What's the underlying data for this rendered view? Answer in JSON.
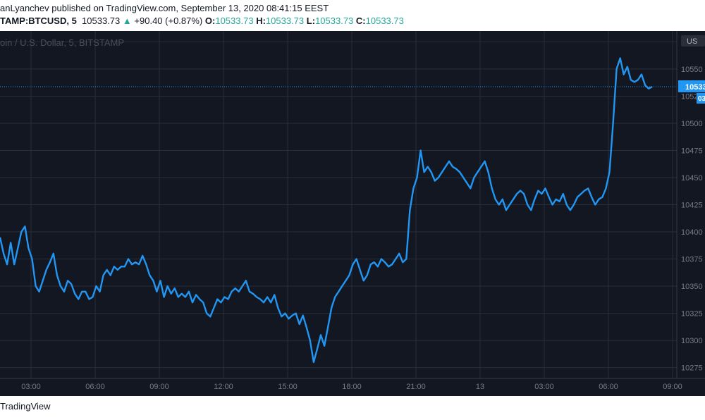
{
  "header": {
    "published_line": "anLyanchev published on TradingView.com, September 13, 2020 08:41:15 EEST",
    "symbol": "TAMP:BTCUSD, 5",
    "last": "10533.73",
    "change_arrow": "▲",
    "change": "+90.40 (+0.87%)",
    "o_label": "O:",
    "o_value": "10533.73",
    "h_label": "H:",
    "h_value": "10533.73",
    "l_label": "L:",
    "l_value": "10533.73",
    "c_label": "C:",
    "c_value": "10533.73"
  },
  "footer": {
    "brand": "TradingView"
  },
  "colors": {
    "background": "#131722",
    "line": "#2196f3",
    "up": "#26a69a",
    "grid": "#363a45",
    "text_light": "#787b86"
  },
  "chart_data": {
    "type": "line",
    "watermark": "oin / U.S. Dollar, 5, BITSTAMP",
    "currency_badge": "US",
    "price_label": "10533",
    "price_label_sub": "03",
    "last_value": 10533.73,
    "x_ticks": [
      "03:00",
      "06:00",
      "09:00",
      "12:00",
      "15:00",
      "18:00",
      "21:00",
      "13",
      "03:00",
      "06:00",
      "09:00"
    ],
    "y_ticks": [
      "10275",
      "10300",
      "10325",
      "10350",
      "10375",
      "10400",
      "10425",
      "10450",
      "10475",
      "10500",
      "10525",
      "10550",
      "10575"
    ],
    "ylim": [
      10265,
      10585
    ],
    "series": [
      {
        "points": [
          [
            "02:00",
            10395
          ],
          [
            "02:10",
            10380
          ],
          [
            "02:20",
            10370
          ],
          [
            "02:30",
            10390
          ],
          [
            "02:40",
            10370
          ],
          [
            "02:50",
            10385
          ],
          [
            "03:00",
            10400
          ],
          [
            "03:10",
            10405
          ],
          [
            "03:20",
            10385
          ],
          [
            "03:30",
            10375
          ],
          [
            "03:40",
            10350
          ],
          [
            "03:50",
            10345
          ],
          [
            "04:00",
            10355
          ],
          [
            "04:10",
            10365
          ],
          [
            "04:20",
            10372
          ],
          [
            "04:30",
            10380
          ],
          [
            "04:40",
            10360
          ],
          [
            "04:50",
            10350
          ],
          [
            "05:00",
            10345
          ],
          [
            "05:10",
            10355
          ],
          [
            "05:20",
            10352
          ],
          [
            "05:30",
            10343
          ],
          [
            "05:40",
            10338
          ],
          [
            "05:50",
            10345
          ],
          [
            "06:00",
            10345
          ],
          [
            "06:10",
            10338
          ],
          [
            "06:20",
            10340
          ],
          [
            "06:30",
            10350
          ],
          [
            "06:40",
            10345
          ],
          [
            "06:50",
            10360
          ],
          [
            "07:00",
            10365
          ],
          [
            "07:10",
            10360
          ],
          [
            "07:20",
            10368
          ],
          [
            "07:30",
            10365
          ],
          [
            "07:40",
            10368
          ],
          [
            "07:50",
            10368
          ],
          [
            "08:00",
            10375
          ],
          [
            "08:10",
            10370
          ],
          [
            "08:20",
            10372
          ],
          [
            "08:30",
            10370
          ],
          [
            "08:40",
            10378
          ],
          [
            "08:50",
            10370
          ],
          [
            "09:00",
            10360
          ],
          [
            "09:10",
            10355
          ],
          [
            "09:20",
            10345
          ],
          [
            "09:30",
            10355
          ],
          [
            "09:40",
            10340
          ],
          [
            "09:50",
            10350
          ],
          [
            "10:00",
            10343
          ],
          [
            "10:10",
            10348
          ],
          [
            "10:20",
            10340
          ],
          [
            "10:30",
            10343
          ],
          [
            "10:40",
            10340
          ],
          [
            "10:50",
            10345
          ],
          [
            "11:00",
            10335
          ],
          [
            "11:10",
            10342
          ],
          [
            "11:20",
            10338
          ],
          [
            "11:30",
            10335
          ],
          [
            "11:40",
            10325
          ],
          [
            "11:50",
            10322
          ],
          [
            "12:00",
            10330
          ],
          [
            "12:10",
            10338
          ],
          [
            "12:20",
            10335
          ],
          [
            "12:30",
            10340
          ],
          [
            "12:40",
            10338
          ],
          [
            "12:50",
            10345
          ],
          [
            "13:00",
            10348
          ],
          [
            "13:10",
            10345
          ],
          [
            "13:20",
            10350
          ],
          [
            "13:30",
            10355
          ],
          [
            "13:40",
            10345
          ],
          [
            "13:50",
            10343
          ],
          [
            "14:00",
            10340
          ],
          [
            "14:10",
            10338
          ],
          [
            "14:20",
            10335
          ],
          [
            "14:30",
            10340
          ],
          [
            "14:40",
            10335
          ],
          [
            "14:50",
            10342
          ],
          [
            "15:00",
            10330
          ],
          [
            "15:10",
            10322
          ],
          [
            "15:20",
            10325
          ],
          [
            "15:30",
            10320
          ],
          [
            "15:40",
            10323
          ],
          [
            "15:50",
            10325
          ],
          [
            "16:00",
            10315
          ],
          [
            "16:10",
            10323
          ],
          [
            "16:20",
            10312
          ],
          [
            "16:30",
            10300
          ],
          [
            "16:40",
            10280
          ],
          [
            "16:50",
            10292
          ],
          [
            "17:00",
            10305
          ],
          [
            "17:10",
            10295
          ],
          [
            "17:20",
            10312
          ],
          [
            "17:30",
            10330
          ],
          [
            "17:40",
            10340
          ],
          [
            "17:50",
            10345
          ],
          [
            "18:00",
            10350
          ],
          [
            "18:10",
            10355
          ],
          [
            "18:20",
            10360
          ],
          [
            "18:30",
            10370
          ],
          [
            "18:40",
            10375
          ],
          [
            "18:50",
            10365
          ],
          [
            "19:00",
            10355
          ],
          [
            "19:10",
            10360
          ],
          [
            "19:20",
            10370
          ],
          [
            "19:30",
            10372
          ],
          [
            "19:40",
            10368
          ],
          [
            "19:50",
            10375
          ],
          [
            "20:00",
            10372
          ],
          [
            "20:10",
            10368
          ],
          [
            "20:20",
            10370
          ],
          [
            "20:30",
            10375
          ],
          [
            "20:40",
            10380
          ],
          [
            "20:50",
            10372
          ],
          [
            "21:00",
            10375
          ],
          [
            "21:10",
            10420
          ],
          [
            "21:20",
            10440
          ],
          [
            "21:30",
            10450
          ],
          [
            "21:40",
            10475
          ],
          [
            "21:50",
            10455
          ],
          [
            "22:00",
            10460
          ],
          [
            "22:10",
            10455
          ],
          [
            "22:20",
            10447
          ],
          [
            "22:30",
            10450
          ],
          [
            "22:40",
            10455
          ],
          [
            "22:50",
            10460
          ],
          [
            "23:00",
            10465
          ],
          [
            "23:10",
            10460
          ],
          [
            "23:20",
            10458
          ],
          [
            "23:30",
            10455
          ],
          [
            "23:40",
            10450
          ],
          [
            "23:50",
            10445
          ],
          [
            "00:00",
            10440
          ],
          [
            "00:10",
            10450
          ],
          [
            "00:20",
            10455
          ],
          [
            "00:30",
            10460
          ],
          [
            "00:40",
            10465
          ],
          [
            "00:50",
            10455
          ],
          [
            "01:00",
            10440
          ],
          [
            "01:10",
            10430
          ],
          [
            "01:20",
            10425
          ],
          [
            "01:30",
            10430
          ],
          [
            "01:40",
            10420
          ],
          [
            "01:50",
            10425
          ],
          [
            "02:00",
            10430
          ],
          [
            "02:10",
            10435
          ],
          [
            "02:20",
            10438
          ],
          [
            "02:30",
            10435
          ],
          [
            "02:40",
            10425
          ],
          [
            "02:50",
            10420
          ],
          [
            "03:00",
            10430
          ],
          [
            "03:10",
            10438
          ],
          [
            "03:20",
            10435
          ],
          [
            "03:30",
            10440
          ],
          [
            "03:40",
            10432
          ],
          [
            "03:50",
            10425
          ],
          [
            "04:00",
            10430
          ],
          [
            "04:10",
            10428
          ],
          [
            "04:20",
            10435
          ],
          [
            "04:30",
            10425
          ],
          [
            "04:40",
            10420
          ],
          [
            "04:50",
            10425
          ],
          [
            "05:00",
            10432
          ],
          [
            "05:10",
            10435
          ],
          [
            "05:20",
            10438
          ],
          [
            "05:30",
            10440
          ],
          [
            "05:40",
            10432
          ],
          [
            "05:50",
            10425
          ],
          [
            "06:00",
            10430
          ],
          [
            "06:10",
            10432
          ],
          [
            "06:20",
            10440
          ],
          [
            "06:30",
            10455
          ],
          [
            "06:40",
            10500
          ],
          [
            "06:50",
            10550
          ],
          [
            "07:00",
            10560
          ],
          [
            "07:10",
            10545
          ],
          [
            "07:20",
            10552
          ],
          [
            "07:30",
            10540
          ],
          [
            "07:40",
            10538
          ],
          [
            "07:50",
            10540
          ],
          [
            "08:00",
            10545
          ],
          [
            "08:10",
            10535
          ],
          [
            "08:20",
            10532
          ],
          [
            "08:30",
            10533.73
          ]
        ]
      }
    ]
  }
}
